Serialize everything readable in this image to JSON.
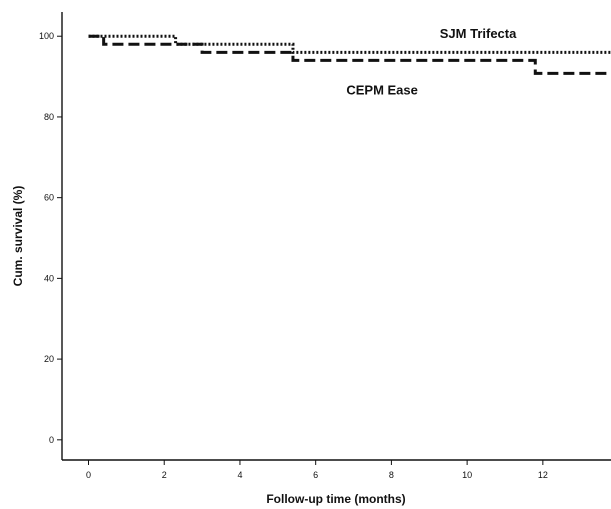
{
  "chart_data": {
    "type": "line",
    "xlabel": "Follow-up time (months)",
    "ylabel": "Cum. survival (%)",
    "xlim": [
      -0.7,
      13.8
    ],
    "ylim": [
      -5,
      106
    ],
    "x_ticks": [
      0,
      2,
      4,
      6,
      8,
      10,
      12
    ],
    "y_ticks": [
      0,
      20,
      40,
      60,
      80,
      100
    ],
    "grid": false,
    "legend": "none",
    "step": true,
    "series": [
      {
        "name": "SJM Trifecta",
        "style": "dotted",
        "x": [
          0,
          2.3,
          5.4,
          13.8
        ],
        "y": [
          100,
          98,
          96,
          96
        ]
      },
      {
        "name": "CEPM Ease",
        "style": "dashed",
        "x": [
          0,
          0.4,
          3.0,
          5.4,
          11.8,
          13.8
        ],
        "y": [
          100,
          98,
          96,
          94,
          90.8,
          90.8
        ]
      }
    ]
  }
}
